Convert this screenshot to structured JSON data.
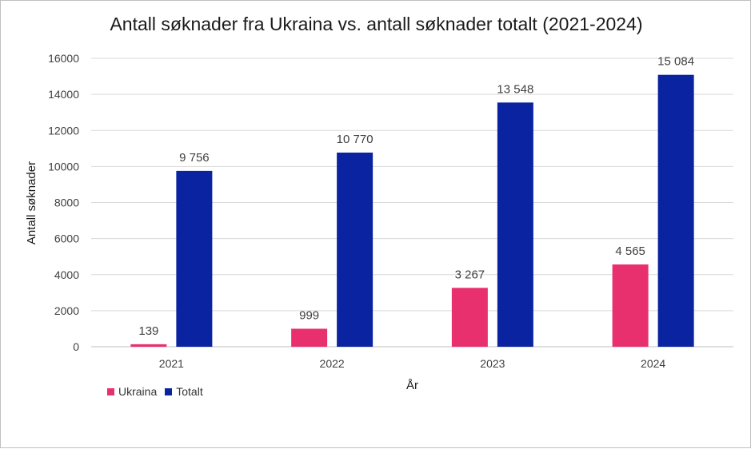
{
  "chart_data": {
    "type": "bar",
    "title": "Antall søknader fra Ukraina vs. antall søknader totalt (2021-2024)",
    "xlabel": "År",
    "ylabel": "Antall søknader",
    "categories": [
      "2021",
      "2022",
      "2023",
      "2024"
    ],
    "series": [
      {
        "name": "Ukraina",
        "color": "#e8306e",
        "values": [
          139,
          999,
          3267,
          4565
        ],
        "labels": [
          "139",
          "999",
          "3 267",
          "4 565"
        ]
      },
      {
        "name": "Totalt",
        "color": "#0a23a0",
        "values": [
          9756,
          10770,
          13548,
          15084
        ],
        "labels": [
          "9 756",
          "10 770",
          "13 548",
          "15 084"
        ]
      }
    ],
    "ylim": [
      0,
      16000
    ],
    "yticks": [
      0,
      2000,
      4000,
      6000,
      8000,
      10000,
      12000,
      14000,
      16000
    ],
    "grid": true,
    "legend_position": "bottom-left"
  }
}
